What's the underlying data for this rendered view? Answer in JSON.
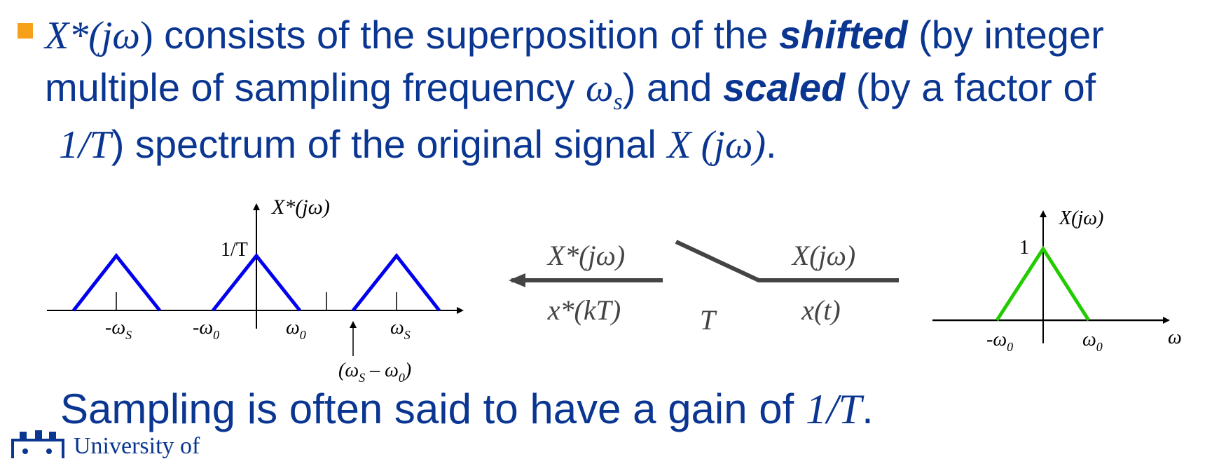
{
  "colors": {
    "text": "#0a3691",
    "bullet": "#f7a11a",
    "sampled_spectrum": "#0000ee",
    "original_spectrum": "#22cc00"
  },
  "bullet": {
    "line1": {
      "m1": "X*(",
      "m2": "jω",
      "m3": ")",
      "t1": " consists of the superposition of the ",
      "b1": "shifted",
      "t2": " (by integer"
    },
    "line2": {
      "t1": "multiple of sampling frequency ",
      "m1": "ω",
      "sub": "s",
      "t2": ") and ",
      "b1": "scaled",
      "t3": " (by a factor of"
    },
    "line3": {
      "m1": "1/T",
      "t1": ") spectrum of the original signal ",
      "m2": "X (jω)",
      "t2": "."
    }
  },
  "left_plot": {
    "ylabel": "X*(jω)",
    "peak_label": "1/T",
    "ticks": {
      "neg_ws": "-ω",
      "neg_ws_sub": "S",
      "neg_w0": "-ω",
      "neg_w0_sub": "0",
      "w0": "ω",
      "w0_sub": "0",
      "ws": "ω",
      "ws_sub": "S"
    },
    "annotation": "(ω",
    "annotation_sub": "S",
    "annotation_mid": " – ω",
    "annotation_sub2": "0",
    "annotation_end": ")"
  },
  "sampler": {
    "out_top": "X*(jω)",
    "out_bottom": "x*(kT)",
    "period": "T",
    "in_top": "X(jω)",
    "in_bottom": "x(t)"
  },
  "right_plot": {
    "ylabel": "X(jω)",
    "peak_label": "1",
    "neg_w0": "-ω",
    "neg_w0_sub": "0",
    "w0": "ω",
    "w0_sub": "0",
    "xlabel": "ω"
  },
  "footer": {
    "t1": "Sampling is often said to have a gain of ",
    "m1": "1/T",
    "t2": ".",
    "logo_text": "University of"
  }
}
